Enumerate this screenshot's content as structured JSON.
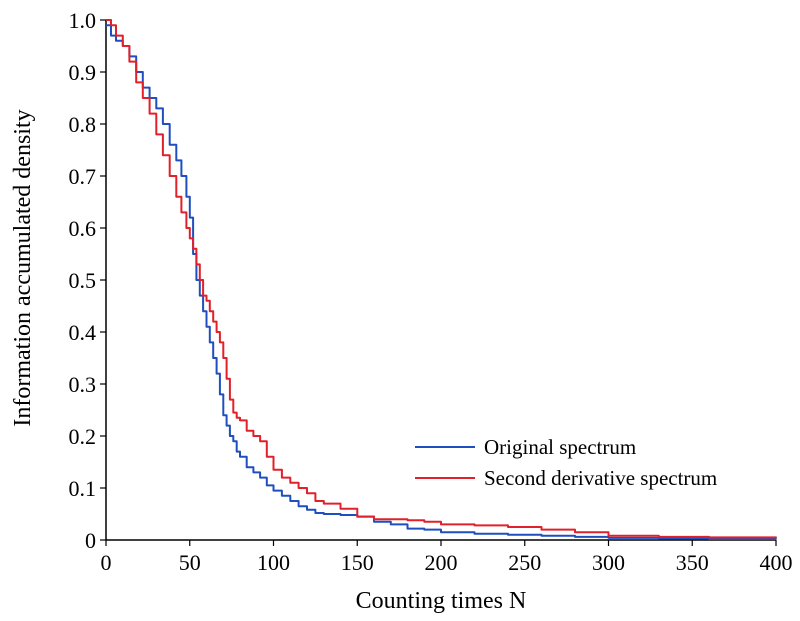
{
  "chart_data": {
    "type": "line",
    "title": "",
    "xlabel": "Counting times N",
    "ylabel": "Information accumulated density",
    "xlim": [
      0,
      400
    ],
    "ylim": [
      0,
      1.0
    ],
    "x_ticks": [
      0,
      50,
      100,
      150,
      200,
      250,
      300,
      350,
      400
    ],
    "y_ticks": [
      0,
      0.1,
      0.2,
      0.3,
      0.4,
      0.5,
      0.6,
      0.7,
      0.8,
      0.9,
      1.0
    ],
    "x_tick_labels": [
      "0",
      "50",
      "100",
      "150",
      "200",
      "250",
      "300",
      "350",
      "400"
    ],
    "y_tick_labels": [
      "0",
      "0.1",
      "0.2",
      "0.3",
      "0.4",
      "0.5",
      "0.6",
      "0.7",
      "0.8",
      "0.9",
      "1.0"
    ],
    "grid": false,
    "legend_position": "right-middle",
    "series": [
      {
        "name": "Original spectrum",
        "color": "#1f4fbf",
        "x": [
          0,
          3,
          6,
          10,
          14,
          18,
          22,
          26,
          30,
          34,
          38,
          42,
          45,
          48,
          50,
          52,
          54,
          56,
          58,
          60,
          62,
          64,
          66,
          68,
          70,
          72,
          74,
          76,
          78,
          80,
          84,
          88,
          92,
          96,
          100,
          105,
          110,
          115,
          120,
          125,
          130,
          140,
          150,
          160,
          170,
          180,
          190,
          200,
          220,
          240,
          260,
          280,
          300,
          330,
          360,
          400
        ],
        "y": [
          0.99,
          0.97,
          0.96,
          0.95,
          0.93,
          0.9,
          0.87,
          0.85,
          0.83,
          0.8,
          0.76,
          0.73,
          0.7,
          0.66,
          0.62,
          0.55,
          0.5,
          0.47,
          0.44,
          0.41,
          0.38,
          0.35,
          0.32,
          0.28,
          0.24,
          0.22,
          0.2,
          0.19,
          0.17,
          0.16,
          0.14,
          0.13,
          0.12,
          0.105,
          0.095,
          0.085,
          0.075,
          0.065,
          0.058,
          0.052,
          0.05,
          0.048,
          0.045,
          0.035,
          0.03,
          0.022,
          0.02,
          0.015,
          0.012,
          0.01,
          0.008,
          0.006,
          0.004,
          0.003,
          0.002,
          0.001
        ]
      },
      {
        "name": "Second derivative spectrum",
        "color": "#e0202a",
        "x": [
          0,
          3,
          6,
          10,
          14,
          18,
          22,
          26,
          30,
          34,
          38,
          42,
          45,
          48,
          50,
          52,
          54,
          56,
          58,
          60,
          62,
          64,
          66,
          68,
          70,
          72,
          74,
          76,
          78,
          80,
          84,
          88,
          92,
          96,
          100,
          105,
          110,
          115,
          120,
          125,
          130,
          140,
          150,
          160,
          170,
          180,
          190,
          200,
          220,
          240,
          260,
          280,
          300,
          330,
          360,
          400
        ],
        "y": [
          1.0,
          0.99,
          0.97,
          0.95,
          0.92,
          0.88,
          0.85,
          0.82,
          0.78,
          0.74,
          0.7,
          0.66,
          0.63,
          0.6,
          0.58,
          0.56,
          0.53,
          0.5,
          0.47,
          0.46,
          0.44,
          0.42,
          0.4,
          0.38,
          0.35,
          0.31,
          0.27,
          0.245,
          0.235,
          0.23,
          0.21,
          0.2,
          0.19,
          0.16,
          0.135,
          0.12,
          0.11,
          0.1,
          0.09,
          0.075,
          0.07,
          0.06,
          0.045,
          0.04,
          0.04,
          0.038,
          0.035,
          0.03,
          0.028,
          0.025,
          0.02,
          0.015,
          0.008,
          0.006,
          0.005,
          0.004
        ]
      }
    ]
  }
}
